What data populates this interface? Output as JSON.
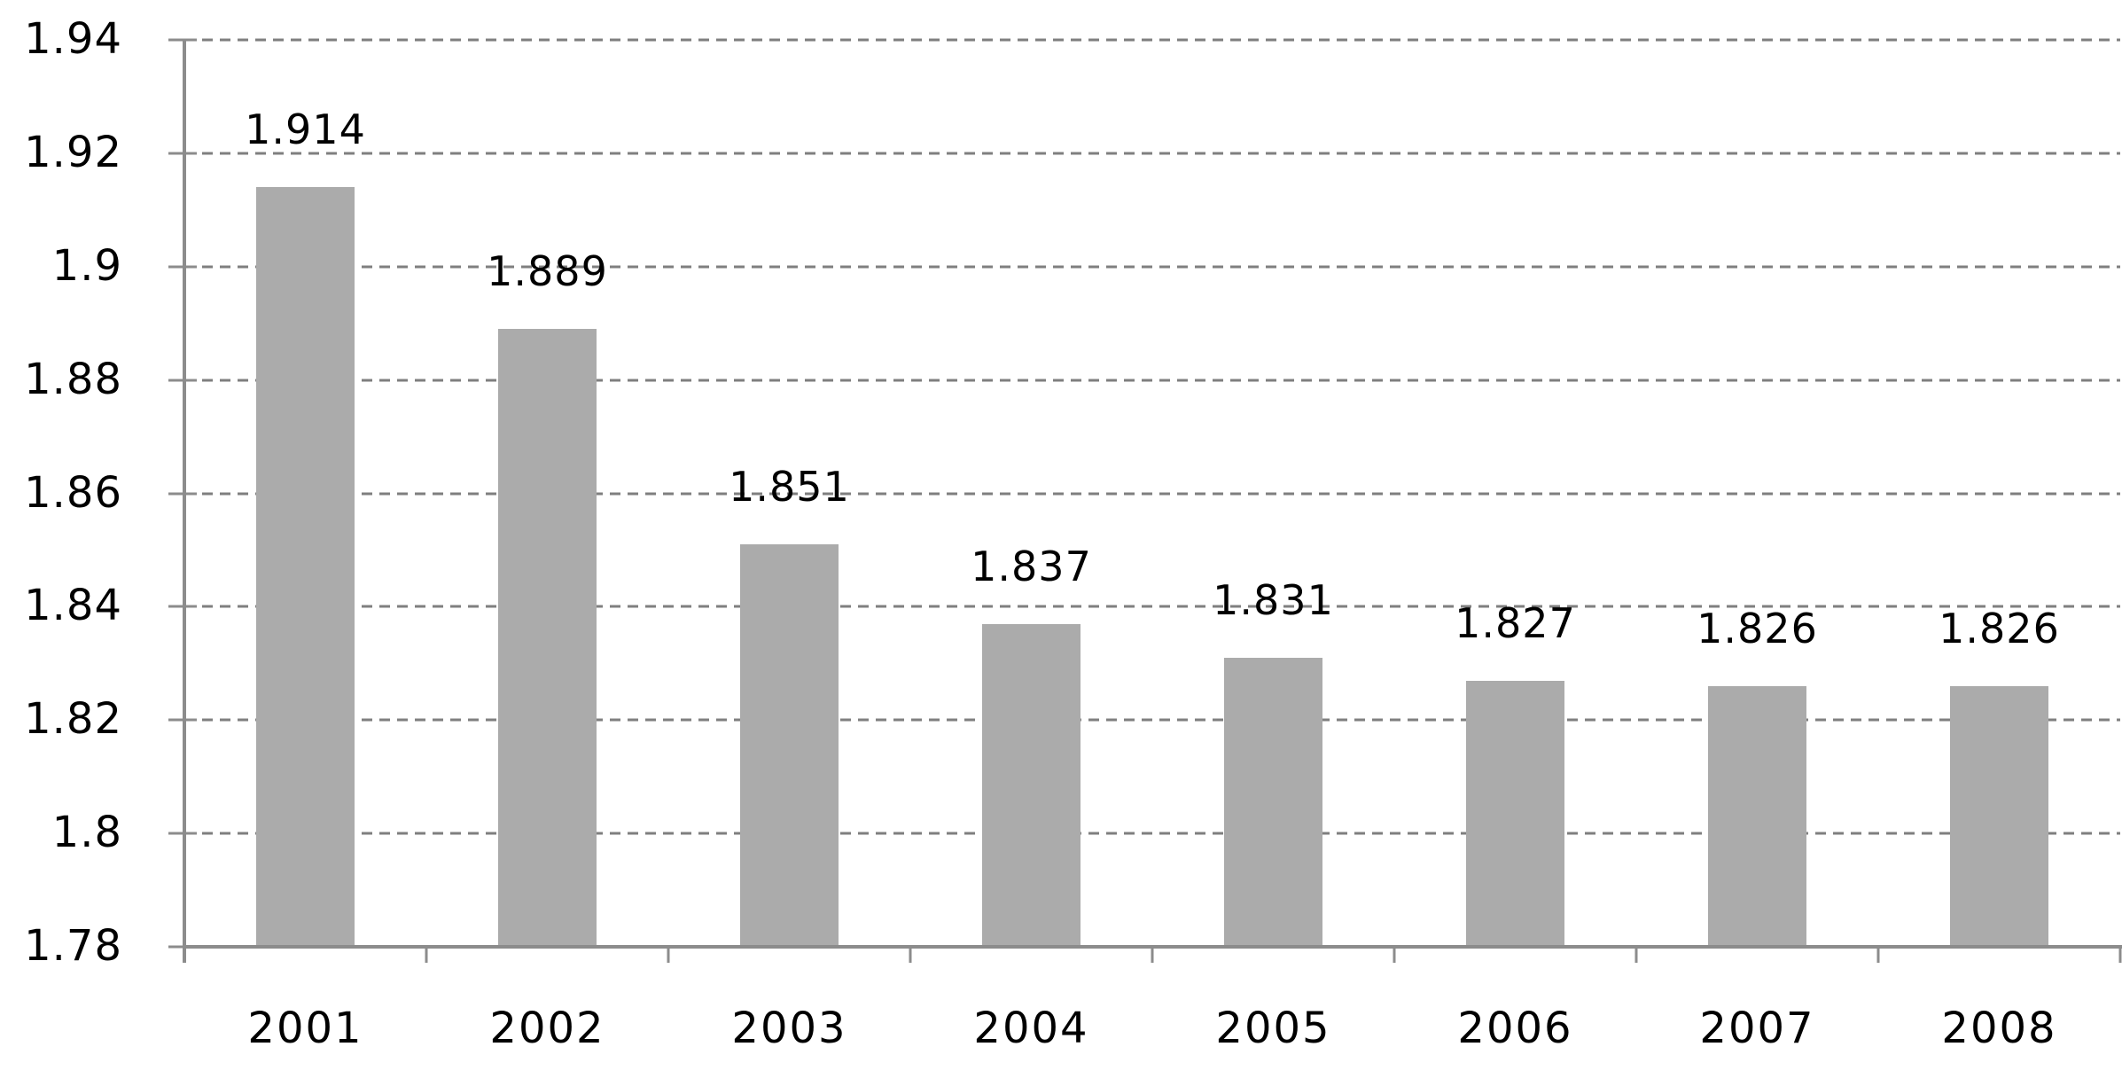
{
  "chart_data": {
    "type": "bar",
    "title": "",
    "xlabel": "",
    "ylabel": "",
    "categories": [
      "2001",
      "2002",
      "2003",
      "2004",
      "2005",
      "2006",
      "2007",
      "2008"
    ],
    "values": [
      1.914,
      1.889,
      1.851,
      1.837,
      1.831,
      1.827,
      1.826,
      1.826
    ],
    "data_labels": [
      "1.914",
      "1.889",
      "1.851",
      "1.837",
      "1.831",
      "1.827",
      "1.826",
      "1.826"
    ],
    "ylim": [
      1.78,
      1.94
    ],
    "ytick_step": 0.02,
    "yticks": [
      "1.94",
      "1.92",
      "1.9",
      "1.88",
      "1.86",
      "1.84",
      "1.82",
      "1.8",
      "1.78"
    ],
    "grid": "horizontal-dashed",
    "legend": "none",
    "bar_color": "#ABABAB",
    "gridline_color": "#7f7f7f",
    "axis_color": "#8c8c8c",
    "text_color": "#000000"
  }
}
